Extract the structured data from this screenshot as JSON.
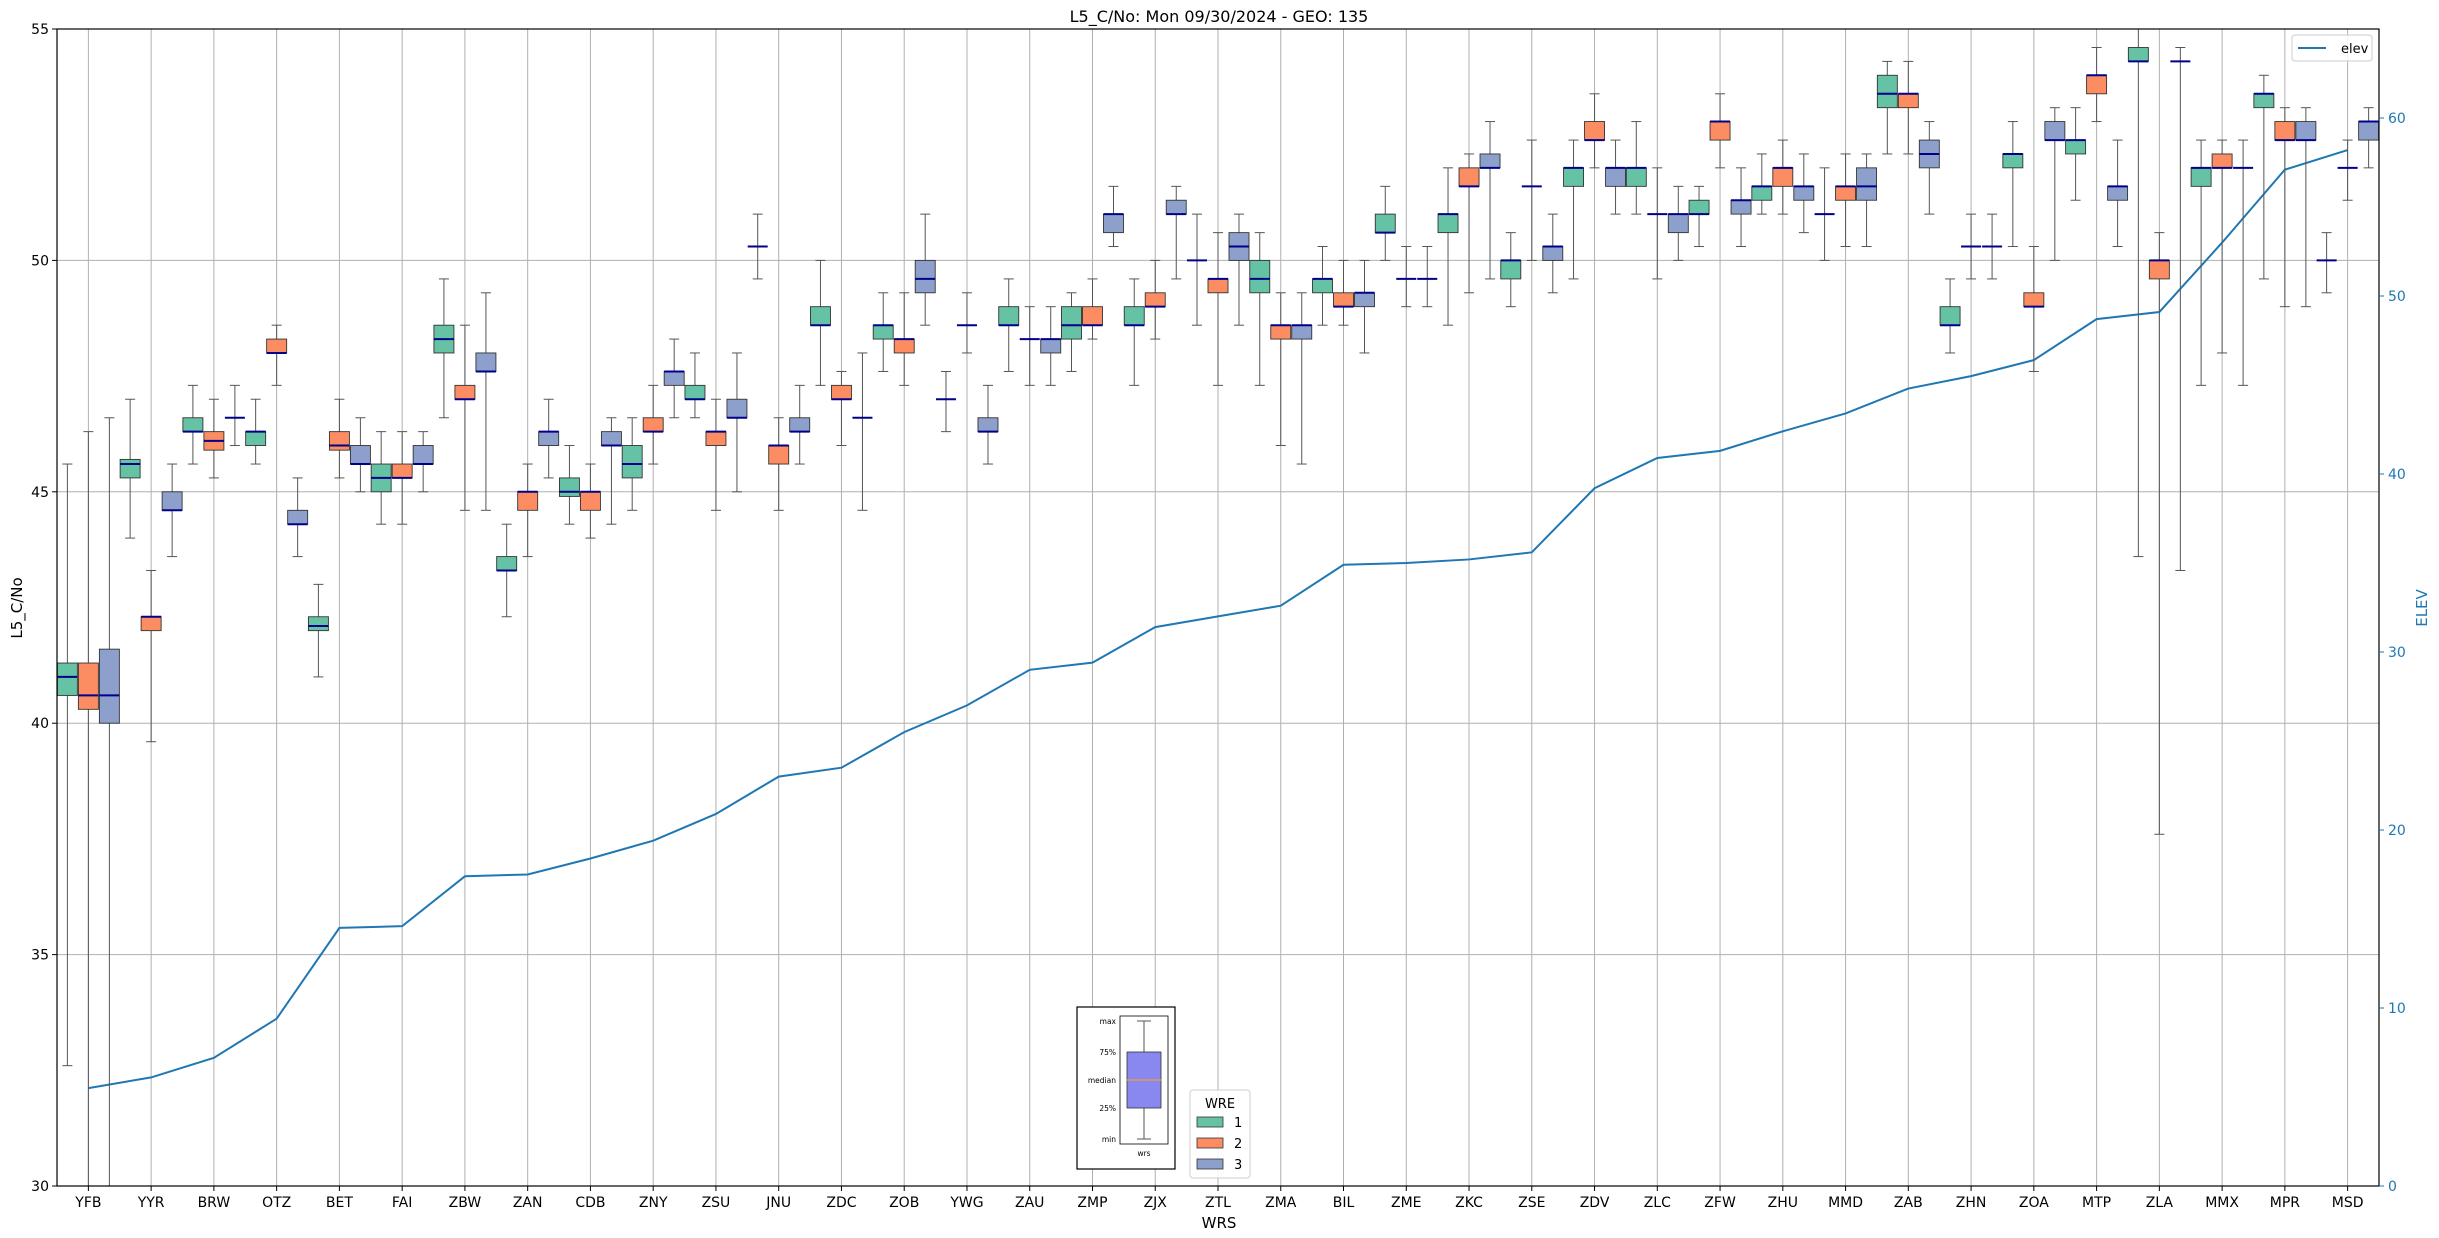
{
  "chart_data": {
    "type": "boxplot",
    "title": "L5_C/No: Mon 09/30/2024 - GEO: 135",
    "xlabel": "WRS",
    "ylabel": "L5_C/No",
    "ylabel_right": "ELEV",
    "ylim": [
      30,
      55
    ],
    "ylim_right": [
      0,
      65
    ],
    "yticks": [
      30,
      35,
      40,
      45,
      50,
      55
    ],
    "yticks_right": [
      0,
      10,
      20,
      30,
      40,
      50,
      60
    ],
    "grid": true,
    "legend_wre": {
      "title": "WRE",
      "entries": [
        "1",
        "2",
        "3"
      ],
      "placement": "bottom-center"
    },
    "legend_elev": {
      "entries": [
        "elev"
      ],
      "placement": "top-right"
    },
    "key_image": {
      "labels": [
        "max",
        "75%",
        "median",
        "25%",
        "min"
      ],
      "xlabel": "wrs"
    },
    "colors": {
      "wre1": "#66c2a5",
      "wre2": "#fc8d62",
      "wre3": "#8da0cb",
      "median": "#00008b",
      "elev": "#1f77b4",
      "whisker": "#555555",
      "grid": "#b0b0b0"
    },
    "categories": [
      "YFB",
      "YYR",
      "BRW",
      "OTZ",
      "BET",
      "FAI",
      "ZBW",
      "ZAN",
      "CDB",
      "ZNY",
      "ZSU",
      "JNU",
      "ZDC",
      "ZOB",
      "YWG",
      "ZAU",
      "ZMP",
      "ZJX",
      "ZTL",
      "ZMA",
      "BIL",
      "ZME",
      "ZKC",
      "ZSE",
      "ZDV",
      "ZLC",
      "ZFW",
      "ZHU",
      "MMD",
      "ZAB",
      "ZHN",
      "ZOA",
      "MTP",
      "ZLA",
      "MMX",
      "MPR",
      "MSD"
    ],
    "elev": [
      5.5,
      6.1,
      7.2,
      9.4,
      14.5,
      14.6,
      17.4,
      17.5,
      18.4,
      19.4,
      20.9,
      23.0,
      23.5,
      25.5,
      27.0,
      29.0,
      29.4,
      31.4,
      32.0,
      32.6,
      34.9,
      35.0,
      35.2,
      35.6,
      39.2,
      40.9,
      41.3,
      42.4,
      43.4,
      44.8,
      45.5,
      46.4,
      48.7,
      49.1,
      53.0,
      57.1,
      58.2
    ],
    "series": [
      {
        "name": "1",
        "boxes": [
          [
            32.6,
            40.6,
            41.0,
            41.3,
            45.6
          ],
          [
            44.0,
            45.3,
            45.6,
            45.7,
            47.0
          ],
          [
            45.6,
            46.3,
            46.3,
            46.6,
            47.3
          ],
          [
            45.6,
            46.0,
            46.3,
            46.3,
            47.0
          ],
          [
            41.0,
            42.0,
            42.1,
            42.3,
            43.0
          ],
          [
            44.3,
            45.0,
            45.3,
            45.6,
            46.3
          ],
          [
            46.6,
            48.0,
            48.3,
            48.6,
            49.6
          ],
          [
            42.3,
            43.3,
            43.3,
            43.6,
            44.3
          ],
          [
            44.3,
            44.9,
            45.0,
            45.3,
            46.0
          ],
          [
            44.6,
            45.3,
            45.6,
            46.0,
            46.6
          ],
          [
            46.6,
            47.0,
            47.0,
            47.3,
            48.0
          ],
          [
            49.6,
            50.3,
            50.3,
            50.3,
            51.0
          ],
          [
            47.3,
            48.6,
            48.6,
            49.0,
            50.0
          ],
          [
            47.6,
            48.3,
            48.6,
            48.6,
            49.3
          ],
          [
            46.3,
            47.0,
            47.0,
            47.0,
            47.6
          ],
          [
            47.6,
            48.6,
            48.6,
            49.0,
            49.6
          ],
          [
            47.6,
            48.3,
            48.6,
            49.0,
            49.3
          ],
          [
            47.3,
            48.6,
            48.6,
            49.0,
            49.6
          ],
          [
            48.6,
            50.0,
            50.0,
            50.0,
            51.0
          ],
          [
            47.3,
            49.3,
            49.6,
            50.0,
            50.6
          ],
          [
            48.6,
            49.3,
            49.6,
            49.6,
            50.3
          ],
          [
            50.0,
            50.6,
            50.6,
            51.0,
            51.6
          ],
          [
            48.6,
            50.6,
            51.0,
            51.0,
            52.0
          ],
          [
            49.0,
            49.6,
            50.0,
            50.0,
            50.6
          ],
          [
            49.6,
            51.6,
            52.0,
            52.0,
            52.6
          ],
          [
            51.0,
            51.6,
            52.0,
            52.0,
            53.0
          ],
          [
            50.3,
            51.0,
            51.0,
            51.3,
            51.6
          ],
          [
            51.0,
            51.3,
            51.6,
            51.6,
            52.3
          ],
          [
            50.0,
            51.0,
            51.0,
            51.0,
            52.0
          ],
          [
            52.3,
            53.3,
            53.6,
            54.0,
            54.3
          ],
          [
            48.0,
            48.6,
            48.6,
            49.0,
            49.6
          ],
          [
            50.3,
            52.0,
            52.3,
            52.3,
            53.0
          ],
          [
            51.3,
            52.3,
            52.6,
            52.6,
            53.3
          ],
          [
            43.6,
            54.3,
            54.3,
            54.6,
            55.0
          ],
          [
            47.3,
            51.6,
            52.0,
            52.0,
            52.6
          ],
          [
            49.6,
            53.3,
            53.6,
            53.6,
            54.0
          ],
          [
            49.3,
            50.0,
            50.0,
            50.0,
            50.6
          ]
        ]
      },
      {
        "name": "2",
        "boxes": [
          [
            30.0,
            40.3,
            40.6,
            41.3,
            46.3
          ],
          [
            39.6,
            42.0,
            42.3,
            42.3,
            43.3
          ],
          [
            45.3,
            45.9,
            46.1,
            46.3,
            47.0
          ],
          [
            47.3,
            48.0,
            48.0,
            48.3,
            48.6
          ],
          [
            45.3,
            45.9,
            46.0,
            46.3,
            47.0
          ],
          [
            44.3,
            45.3,
            45.3,
            45.6,
            46.3
          ],
          [
            44.6,
            47.0,
            47.0,
            47.3,
            48.6
          ],
          [
            43.6,
            44.6,
            45.0,
            45.0,
            45.6
          ],
          [
            44.0,
            44.6,
            45.0,
            45.0,
            45.6
          ],
          [
            45.6,
            46.3,
            46.3,
            46.6,
            47.3
          ],
          [
            44.6,
            46.0,
            46.3,
            46.3,
            47.0
          ],
          [
            44.6,
            45.6,
            46.0,
            46.0,
            46.6
          ],
          [
            46.0,
            47.0,
            47.0,
            47.3,
            47.6
          ],
          [
            47.3,
            48.0,
            48.3,
            48.3,
            49.3
          ],
          [
            48.0,
            48.6,
            48.6,
            48.6,
            49.3
          ],
          [
            47.3,
            48.3,
            48.3,
            48.3,
            49.0
          ],
          [
            48.3,
            48.6,
            48.6,
            49.0,
            49.6
          ],
          [
            48.3,
            49.0,
            49.0,
            49.3,
            50.0
          ],
          [
            47.3,
            49.3,
            49.6,
            49.6,
            50.6
          ],
          [
            46.0,
            48.3,
            48.6,
            48.6,
            49.3
          ],
          [
            48.6,
            49.0,
            49.0,
            49.3,
            50.0
          ],
          [
            49.0,
            49.6,
            49.6,
            49.6,
            50.3
          ],
          [
            49.3,
            51.6,
            51.6,
            52.0,
            52.3
          ],
          [
            50.0,
            51.6,
            51.6,
            51.6,
            52.6
          ],
          [
            52.0,
            52.6,
            52.6,
            53.0,
            53.6
          ],
          [
            49.6,
            51.0,
            51.0,
            51.0,
            52.0
          ],
          [
            52.0,
            52.6,
            53.0,
            53.0,
            53.6
          ],
          [
            51.0,
            51.6,
            52.0,
            52.0,
            52.6
          ],
          [
            50.3,
            51.3,
            51.6,
            51.6,
            52.3
          ],
          [
            52.3,
            53.3,
            53.6,
            53.6,
            54.3
          ],
          [
            49.6,
            50.3,
            50.3,
            50.3,
            51.0
          ],
          [
            47.6,
            49.0,
            49.0,
            49.3,
            50.3
          ],
          [
            53.0,
            53.6,
            54.0,
            54.0,
            54.6
          ],
          [
            37.6,
            49.6,
            50.0,
            50.0,
            50.6
          ],
          [
            48.0,
            52.0,
            52.0,
            52.3,
            52.6
          ],
          [
            49.0,
            52.6,
            52.6,
            53.0,
            53.3
          ],
          [
            51.3,
            52.0,
            52.0,
            52.0,
            52.6
          ]
        ]
      },
      {
        "name": "3",
        "boxes": [
          [
            30.0,
            40.0,
            40.6,
            41.6,
            46.6
          ],
          [
            43.6,
            44.6,
            44.6,
            45.0,
            45.6
          ],
          [
            46.0,
            46.6,
            46.6,
            46.6,
            47.3
          ],
          [
            43.6,
            44.3,
            44.3,
            44.6,
            45.3
          ],
          [
            45.0,
            45.6,
            45.6,
            46.0,
            46.6
          ],
          [
            45.0,
            45.6,
            45.6,
            46.0,
            46.3
          ],
          [
            44.6,
            47.6,
            47.6,
            48.0,
            49.3
          ],
          [
            45.3,
            46.0,
            46.3,
            46.3,
            47.0
          ],
          [
            44.3,
            46.0,
            46.0,
            46.3,
            46.6
          ],
          [
            46.6,
            47.3,
            47.6,
            47.6,
            48.3
          ],
          [
            45.0,
            46.6,
            46.6,
            47.0,
            48.0
          ],
          [
            45.6,
            46.3,
            46.3,
            46.6,
            47.3
          ],
          [
            44.6,
            46.6,
            46.6,
            46.6,
            48.0
          ],
          [
            48.6,
            49.3,
            49.6,
            50.0,
            51.0
          ],
          [
            45.6,
            46.3,
            46.3,
            46.6,
            47.3
          ],
          [
            47.3,
            48.0,
            48.3,
            48.3,
            49.0
          ],
          [
            50.3,
            50.6,
            51.0,
            51.0,
            51.6
          ],
          [
            49.6,
            51.0,
            51.0,
            51.3,
            51.6
          ],
          [
            48.6,
            50.0,
            50.3,
            50.6,
            51.0
          ],
          [
            45.6,
            48.3,
            48.6,
            48.6,
            49.3
          ],
          [
            48.0,
            49.0,
            49.3,
            49.3,
            50.0
          ],
          [
            49.0,
            49.6,
            49.6,
            49.6,
            50.3
          ],
          [
            49.6,
            52.0,
            52.0,
            52.3,
            53.0
          ],
          [
            49.3,
            50.0,
            50.3,
            50.3,
            51.0
          ],
          [
            51.0,
            51.6,
            52.0,
            52.0,
            52.6
          ],
          [
            50.0,
            50.6,
            51.0,
            51.0,
            51.6
          ],
          [
            50.3,
            51.0,
            51.3,
            51.3,
            52.0
          ],
          [
            50.6,
            51.3,
            51.6,
            51.6,
            52.3
          ],
          [
            50.3,
            51.3,
            51.6,
            52.0,
            52.3
          ],
          [
            51.0,
            52.0,
            52.3,
            52.6,
            53.0
          ],
          [
            49.6,
            50.3,
            50.3,
            50.3,
            51.0
          ],
          [
            50.0,
            52.6,
            52.6,
            53.0,
            53.3
          ],
          [
            50.3,
            51.3,
            51.6,
            51.6,
            52.6
          ],
          [
            43.3,
            54.3,
            54.3,
            54.3,
            54.6
          ],
          [
            47.3,
            52.0,
            52.0,
            52.0,
            52.6
          ],
          [
            49.0,
            52.6,
            52.6,
            53.0,
            53.3
          ],
          [
            52.0,
            52.6,
            53.0,
            53.0,
            53.3
          ]
        ]
      }
    ]
  }
}
